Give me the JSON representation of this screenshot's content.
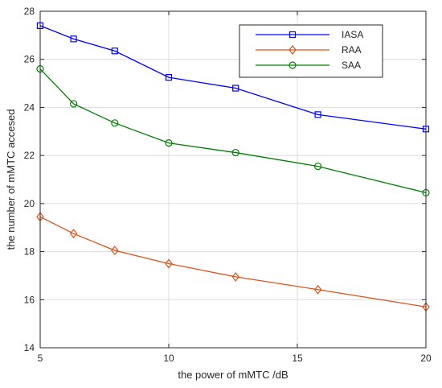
{
  "chart_data": {
    "type": "line",
    "title": "",
    "xlabel": "the power of mMTC /dB",
    "ylabel": "the number of mMTC accesed",
    "xlim": [
      5,
      20
    ],
    "ylim": [
      14,
      28
    ],
    "x_ticks": [
      5,
      10,
      15,
      20
    ],
    "y_ticks": [
      14,
      16,
      18,
      20,
      22,
      24,
      26,
      28
    ],
    "grid": true,
    "legend_position": "top-right",
    "x": [
      5,
      6.3,
      7.9,
      10,
      12.6,
      15.8,
      20
    ],
    "series": [
      {
        "name": "IASA",
        "color": "#0000ff",
        "marker": "square",
        "values": [
          27.4,
          26.85,
          26.35,
          25.25,
          24.8,
          23.7,
          23.1
        ]
      },
      {
        "name": "RAA",
        "color": "#d95319",
        "marker": "diamond",
        "values": [
          19.45,
          18.75,
          18.05,
          17.5,
          16.95,
          16.42,
          15.7
        ]
      },
      {
        "name": "SAA",
        "color": "#008000",
        "marker": "circle",
        "values": [
          25.6,
          24.15,
          23.35,
          22.52,
          22.12,
          21.55,
          20.45
        ]
      }
    ]
  }
}
